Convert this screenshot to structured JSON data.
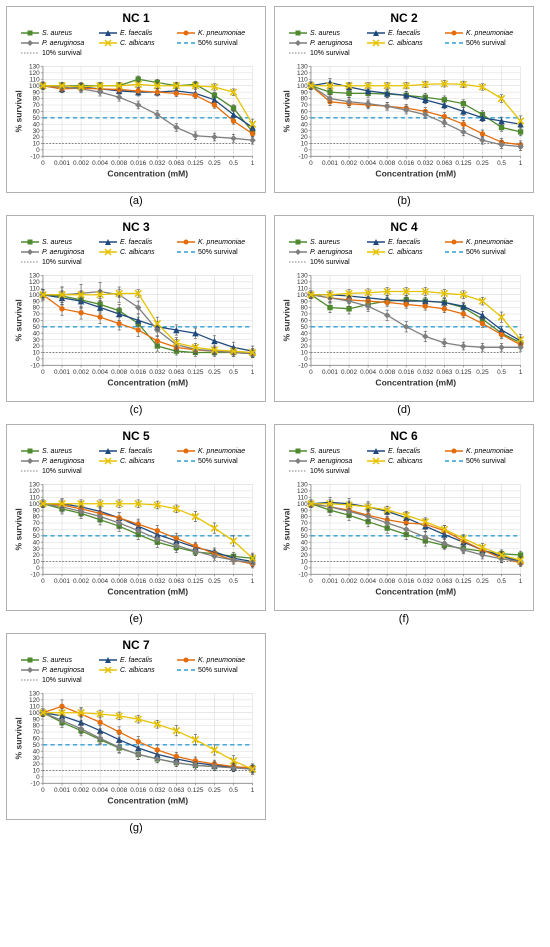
{
  "colors": {
    "s_aureus": "#4f8a2e",
    "e_faecalis": "#1f497d",
    "k_pneumoniae": "#e46c0a",
    "p_aeruginosa": "#7f7f7f",
    "c_albicans": "#e6c200",
    "ref_50": "#2e9ed6",
    "ref_10": "#7f7f7f",
    "axis": "#888888",
    "grid": "#d9d9d9",
    "text": "#333333",
    "border": "#b0b0b0"
  },
  "legend_labels": {
    "s_aureus": "S. aureus",
    "e_faecalis": "E. faecalis",
    "k_pneumoniae": "K. pneumoniae",
    "p_aeruginosa": "P. aeruginosa",
    "c_albicans": "C. albicans",
    "ref_50": "50% survival",
    "ref_10": "10% survival"
  },
  "x_ticks": [
    "0",
    "0.001",
    "0.002",
    "0.004",
    "0.008",
    "0.016",
    "0.032",
    "0.063",
    "0.125",
    "0.25",
    "0.5",
    "1"
  ],
  "y_ticks": [
    -10,
    0,
    10,
    20,
    30,
    40,
    50,
    60,
    70,
    80,
    90,
    100,
    110,
    120,
    130
  ],
  "y_axis_label": "% survival",
  "x_axis_label": "Concentration (mM)",
  "ylim": [
    -10,
    130
  ],
  "tick_fontsize": 6,
  "axis_fontsize": 8,
  "title_fontsize": 12,
  "line_width": 1.2,
  "marker_size": 3,
  "error_bar_color": "#555555",
  "panels": [
    {
      "id": "nc1",
      "title": "NC 1",
      "sublabel": "(a)",
      "series": {
        "s_aureus": {
          "y": [
            100,
            100,
            100,
            100,
            100,
            110,
            105,
            100,
            102,
            85,
            65,
            28
          ],
          "err": [
            5,
            5,
            5,
            5,
            5,
            5,
            5,
            5,
            5,
            5,
            5,
            5
          ]
        },
        "e_faecalis": {
          "y": [
            100,
            95,
            98,
            95,
            92,
            90,
            90,
            92,
            88,
            78,
            55,
            35
          ],
          "err": [
            6,
            6,
            6,
            6,
            6,
            6,
            6,
            6,
            6,
            6,
            6,
            6
          ]
        },
        "k_pneumoniae": {
          "y": [
            100,
            95,
            96,
            95,
            94,
            92,
            90,
            88,
            85,
            70,
            45,
            25
          ],
          "err": [
            5,
            5,
            5,
            5,
            5,
            5,
            5,
            5,
            5,
            5,
            5,
            5
          ]
        },
        "p_aeruginosa": {
          "y": [
            100,
            98,
            95,
            90,
            82,
            70,
            55,
            35,
            22,
            20,
            18,
            15
          ],
          "err": [
            6,
            6,
            6,
            6,
            6,
            6,
            6,
            6,
            6,
            6,
            6,
            6
          ]
        },
        "c_albicans": {
          "y": [
            100,
            100,
            98,
            100,
            100,
            102,
            100,
            100,
            100,
            98,
            90,
            40
          ],
          "err": [
            5,
            5,
            5,
            5,
            5,
            5,
            5,
            5,
            5,
            5,
            5,
            8
          ]
        }
      }
    },
    {
      "id": "nc2",
      "title": "NC 2",
      "sublabel": "(b)",
      "series": {
        "s_aureus": {
          "y": [
            100,
            90,
            88,
            88,
            87,
            85,
            82,
            78,
            72,
            55,
            35,
            28
          ],
          "err": [
            6,
            6,
            6,
            6,
            6,
            6,
            6,
            6,
            6,
            6,
            6,
            6
          ]
        },
        "e_faecalis": {
          "y": [
            100,
            105,
            98,
            92,
            88,
            85,
            78,
            70,
            60,
            50,
            45,
            40
          ],
          "err": [
            6,
            6,
            6,
            6,
            6,
            6,
            6,
            6,
            6,
            6,
            6,
            6
          ]
        },
        "k_pneumoniae": {
          "y": [
            100,
            75,
            72,
            70,
            68,
            65,
            60,
            52,
            40,
            25,
            12,
            8
          ],
          "err": [
            6,
            6,
            6,
            6,
            6,
            6,
            6,
            6,
            6,
            6,
            6,
            6
          ]
        },
        "p_aeruginosa": {
          "y": [
            100,
            80,
            75,
            72,
            68,
            62,
            55,
            42,
            28,
            15,
            8,
            5
          ],
          "err": [
            6,
            6,
            6,
            6,
            6,
            6,
            6,
            6,
            6,
            6,
            6,
            6
          ]
        },
        "c_albicans": {
          "y": [
            100,
            100,
            100,
            100,
            100,
            100,
            102,
            103,
            102,
            98,
            80,
            45
          ],
          "err": [
            5,
            5,
            5,
            5,
            5,
            5,
            5,
            5,
            5,
            5,
            6,
            8
          ]
        }
      }
    },
    {
      "id": "nc3",
      "title": "NC 3",
      "sublabel": "(c)",
      "series": {
        "s_aureus": {
          "y": [
            100,
            98,
            92,
            85,
            75,
            55,
            20,
            12,
            10,
            10,
            10,
            8
          ],
          "err": [
            8,
            14,
            14,
            12,
            10,
            10,
            8,
            6,
            6,
            6,
            6,
            6
          ]
        },
        "e_faecalis": {
          "y": [
            100,
            95,
            90,
            80,
            70,
            60,
            50,
            45,
            40,
            28,
            18,
            12
          ],
          "err": [
            8,
            10,
            10,
            10,
            10,
            10,
            8,
            8,
            8,
            8,
            8,
            8
          ]
        },
        "k_pneumoniae": {
          "y": [
            100,
            78,
            72,
            65,
            55,
            45,
            28,
            18,
            14,
            12,
            10,
            8
          ],
          "err": [
            8,
            10,
            10,
            10,
            10,
            10,
            8,
            6,
            6,
            6,
            6,
            6
          ]
        },
        "p_aeruginosa": {
          "y": [
            100,
            100,
            102,
            105,
            100,
            80,
            45,
            22,
            15,
            12,
            10,
            8
          ],
          "err": [
            8,
            12,
            14,
            14,
            12,
            10,
            10,
            8,
            6,
            6,
            6,
            6
          ]
        },
        "c_albicans": {
          "y": [
            100,
            100,
            100,
            100,
            102,
            102,
            55,
            25,
            18,
            14,
            12,
            10
          ],
          "err": [
            6,
            6,
            6,
            6,
            6,
            6,
            10,
            8,
            6,
            6,
            6,
            6
          ]
        }
      }
    },
    {
      "id": "nc4",
      "title": "NC 4",
      "sublabel": "(d)",
      "series": {
        "s_aureus": {
          "y": [
            100,
            80,
            78,
            85,
            90,
            92,
            90,
            88,
            80,
            62,
            40,
            25
          ],
          "err": [
            6,
            8,
            8,
            8,
            6,
            6,
            6,
            6,
            6,
            6,
            6,
            6
          ]
        },
        "e_faecalis": {
          "y": [
            100,
            100,
            98,
            95,
            92,
            90,
            90,
            88,
            82,
            68,
            45,
            28
          ],
          "err": [
            6,
            6,
            6,
            6,
            6,
            6,
            6,
            6,
            6,
            6,
            6,
            6
          ]
        },
        "k_pneumoniae": {
          "y": [
            100,
            95,
            92,
            90,
            88,
            85,
            82,
            78,
            70,
            55,
            38,
            22
          ],
          "err": [
            6,
            6,
            6,
            6,
            6,
            6,
            6,
            6,
            6,
            6,
            6,
            6
          ]
        },
        "p_aeruginosa": {
          "y": [
            100,
            95,
            90,
            82,
            68,
            50,
            35,
            25,
            20,
            18,
            18,
            18
          ],
          "err": [
            6,
            8,
            8,
            8,
            8,
            8,
            8,
            6,
            6,
            6,
            6,
            6
          ]
        },
        "c_albicans": {
          "y": [
            100,
            100,
            102,
            103,
            105,
            105,
            105,
            102,
            100,
            90,
            65,
            30
          ],
          "err": [
            6,
            6,
            6,
            6,
            6,
            6,
            6,
            6,
            6,
            6,
            8,
            8
          ]
        }
      }
    },
    {
      "id": "nc5",
      "title": "NC 5",
      "sublabel": "(e)",
      "series": {
        "s_aureus": {
          "y": [
            100,
            92,
            85,
            75,
            65,
            52,
            40,
            32,
            25,
            22,
            18,
            15
          ],
          "err": [
            6,
            8,
            8,
            8,
            8,
            8,
            8,
            8,
            6,
            6,
            6,
            6
          ]
        },
        "e_faecalis": {
          "y": [
            100,
            100,
            95,
            88,
            78,
            65,
            52,
            42,
            32,
            25,
            15,
            10
          ],
          "err": [
            6,
            8,
            8,
            8,
            8,
            8,
            8,
            8,
            6,
            6,
            6,
            6
          ]
        },
        "k_pneumoniae": {
          "y": [
            100,
            98,
            92,
            85,
            78,
            68,
            58,
            46,
            34,
            22,
            12,
            6
          ],
          "err": [
            6,
            8,
            8,
            8,
            8,
            8,
            8,
            8,
            6,
            6,
            6,
            6
          ]
        },
        "p_aeruginosa": {
          "y": [
            100,
            95,
            88,
            80,
            70,
            58,
            45,
            35,
            26,
            18,
            12,
            8
          ],
          "err": [
            6,
            8,
            8,
            8,
            8,
            8,
            8,
            8,
            6,
            6,
            6,
            6
          ]
        },
        "c_albicans": {
          "y": [
            100,
            100,
            100,
            100,
            100,
            100,
            98,
            92,
            80,
            62,
            42,
            15
          ],
          "err": [
            6,
            6,
            6,
            6,
            6,
            6,
            6,
            6,
            8,
            8,
            8,
            8
          ]
        }
      }
    },
    {
      "id": "nc6",
      "title": "NC 6",
      "sublabel": "(f)",
      "series": {
        "s_aureus": {
          "y": [
            100,
            90,
            82,
            72,
            62,
            52,
            42,
            35,
            30,
            26,
            22,
            20
          ],
          "err": [
            6,
            8,
            8,
            8,
            8,
            8,
            8,
            6,
            6,
            6,
            6,
            6
          ]
        },
        "e_faecalis": {
          "y": [
            100,
            102,
            100,
            95,
            88,
            78,
            65,
            52,
            40,
            28,
            18,
            10
          ],
          "err": [
            6,
            8,
            8,
            8,
            8,
            8,
            8,
            8,
            6,
            6,
            6,
            6
          ]
        },
        "k_pneumoniae": {
          "y": [
            100,
            95,
            90,
            82,
            75,
            70,
            68,
            58,
            42,
            28,
            15,
            8
          ],
          "err": [
            6,
            8,
            8,
            8,
            8,
            8,
            8,
            8,
            6,
            6,
            6,
            6
          ]
        },
        "p_aeruginosa": {
          "y": [
            100,
            95,
            88,
            80,
            70,
            60,
            48,
            38,
            28,
            20,
            14,
            10
          ],
          "err": [
            6,
            8,
            8,
            8,
            8,
            8,
            8,
            8,
            6,
            6,
            6,
            6
          ]
        },
        "c_albicans": {
          "y": [
            100,
            100,
            98,
            95,
            90,
            82,
            72,
            60,
            46,
            32,
            20,
            12
          ],
          "err": [
            6,
            6,
            6,
            6,
            6,
            6,
            6,
            6,
            6,
            6,
            6,
            6
          ]
        }
      }
    },
    {
      "id": "nc7",
      "title": "NC 7",
      "sublabel": "(g)",
      "series": {
        "s_aureus": {
          "y": [
            100,
            85,
            72,
            58,
            45,
            35,
            28,
            22,
            18,
            16,
            15,
            14
          ],
          "err": [
            6,
            8,
            8,
            8,
            8,
            8,
            6,
            6,
            6,
            6,
            6,
            6
          ]
        },
        "e_faecalis": {
          "y": [
            100,
            95,
            85,
            72,
            58,
            45,
            35,
            28,
            22,
            18,
            15,
            12
          ],
          "err": [
            6,
            8,
            8,
            8,
            8,
            8,
            8,
            6,
            6,
            6,
            6,
            6
          ]
        },
        "k_pneumoniae": {
          "y": [
            100,
            110,
            98,
            85,
            70,
            55,
            42,
            32,
            25,
            20,
            16,
            14
          ],
          "err": [
            6,
            10,
            10,
            10,
            8,
            8,
            8,
            6,
            6,
            6,
            6,
            6
          ]
        },
        "p_aeruginosa": {
          "y": [
            100,
            88,
            75,
            60,
            46,
            35,
            28,
            22,
            18,
            16,
            14,
            12
          ],
          "err": [
            6,
            8,
            8,
            8,
            8,
            8,
            6,
            6,
            6,
            6,
            6,
            6
          ]
        },
        "c_albicans": {
          "y": [
            100,
            100,
            100,
            98,
            95,
            90,
            82,
            72,
            58,
            42,
            25,
            12
          ],
          "err": [
            6,
            6,
            6,
            6,
            6,
            6,
            6,
            8,
            8,
            8,
            8,
            8
          ]
        }
      }
    }
  ]
}
